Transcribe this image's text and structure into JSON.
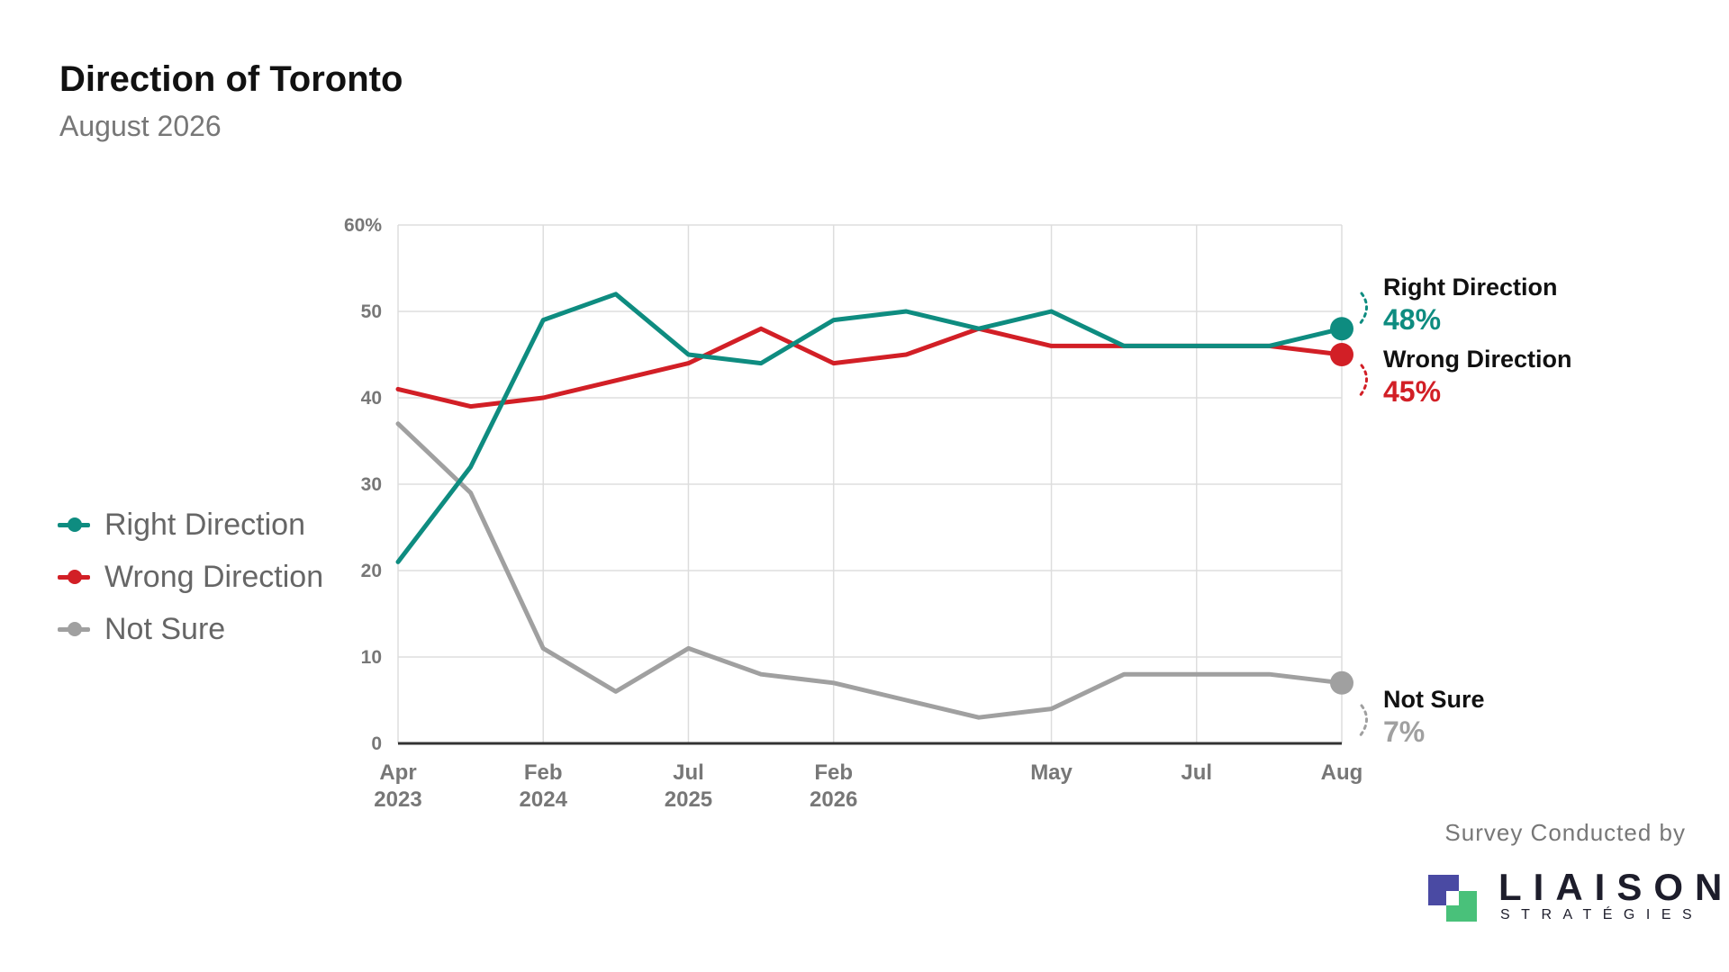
{
  "header": {
    "title": "Direction of Toronto",
    "subtitle": "August 2026"
  },
  "legend": [
    {
      "label": "Right Direction",
      "color": "#0e8c80"
    },
    {
      "label": "Wrong Direction",
      "color": "#d21f26"
    },
    {
      "label": "Not Sure",
      "color": "#a0a0a0"
    }
  ],
  "footer": {
    "survey_text": "Survey Conducted by",
    "logo_name": "LIAISON",
    "logo_sub": "STRATÉGIES"
  },
  "chart_data": {
    "type": "line",
    "ylim": [
      0,
      60
    ],
    "y_ticks": [
      "0",
      "10",
      "20",
      "30",
      "40",
      "50",
      "60%"
    ],
    "x_tick_labels": [
      {
        "index": 0,
        "lines": [
          "Apr",
          "2023"
        ]
      },
      {
        "index": 2,
        "lines": [
          "Feb",
          "2024"
        ]
      },
      {
        "index": 4,
        "lines": [
          "Jul",
          "2025"
        ]
      },
      {
        "index": 6,
        "lines": [
          "Feb",
          "2026"
        ]
      },
      {
        "index": 9,
        "lines": [
          "May"
        ]
      },
      {
        "index": 11,
        "lines": [
          "Jul"
        ]
      },
      {
        "index": 13,
        "lines": [
          "Aug"
        ]
      }
    ],
    "grid": true,
    "series": [
      {
        "name": "Right Direction",
        "color": "#0e8c80",
        "values": [
          21,
          32,
          49,
          52,
          45,
          44,
          49,
          50,
          48,
          50,
          46,
          46,
          46,
          48
        ],
        "end_label": "Right Direction",
        "end_value": "48%"
      },
      {
        "name": "Wrong Direction",
        "color": "#d21f26",
        "values": [
          41,
          39,
          40,
          42,
          44,
          48,
          44,
          45,
          48,
          46,
          46,
          46,
          46,
          45
        ],
        "end_label": "Wrong Direction",
        "end_value": "45%"
      },
      {
        "name": "Not Sure",
        "color": "#a0a0a0",
        "values": [
          37,
          29,
          11,
          6,
          11,
          8,
          7,
          5,
          3,
          4,
          8,
          8,
          8,
          7
        ],
        "end_label": "Not Sure",
        "end_value": "7%"
      }
    ]
  }
}
